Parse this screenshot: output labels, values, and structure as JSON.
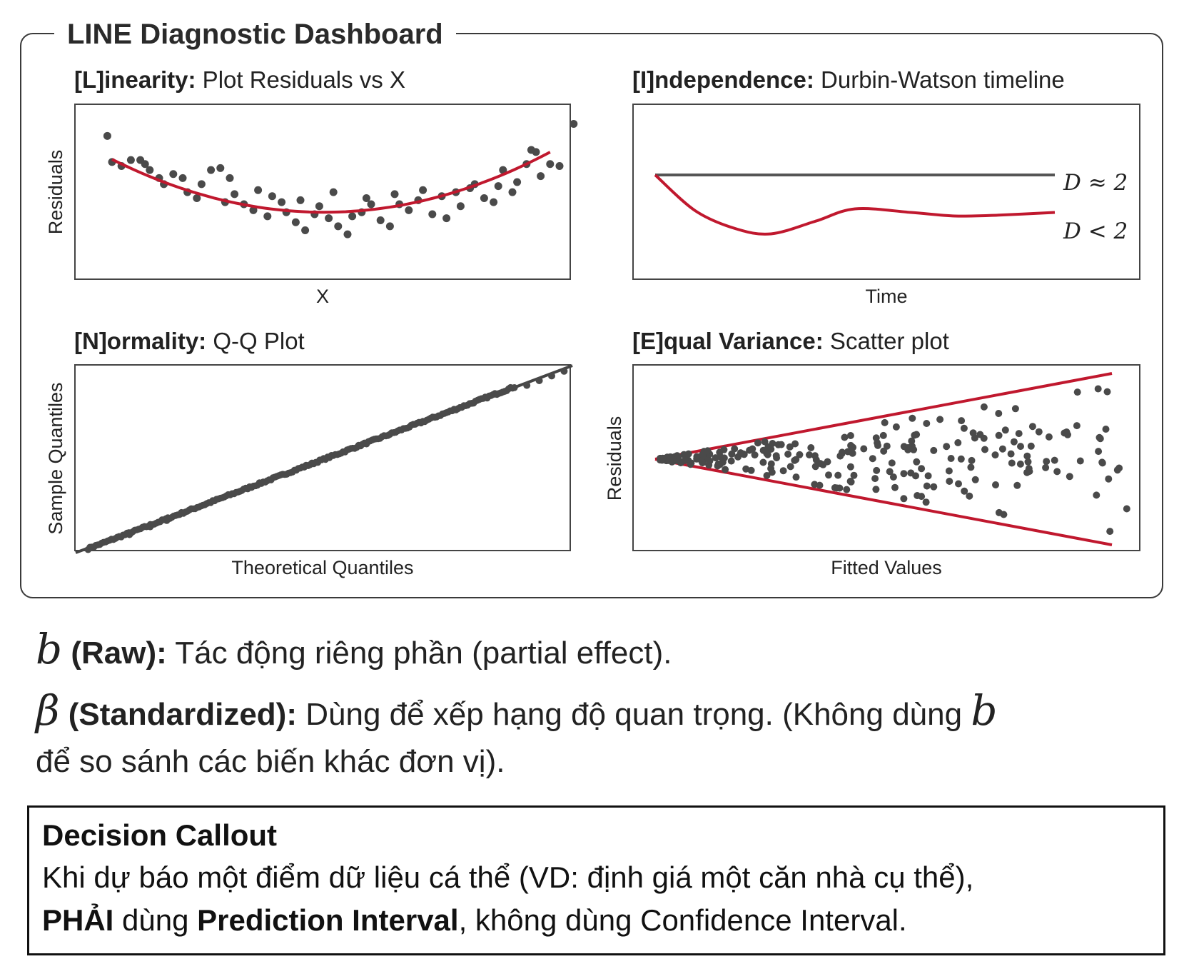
{
  "dashboard": {
    "title": "LINE Diagnostic Dashboard"
  },
  "colors": {
    "points": "#4a4a4a",
    "fit": "#c0182e",
    "line": "#444444"
  },
  "panels": {
    "linearity": {
      "title_bold": "[L]inearity:",
      "title_rest": " Plot Residuals vs X",
      "xlabel": "X",
      "ylabel": "Residuals"
    },
    "independence": {
      "title_bold": "[I]ndependence:",
      "title_rest": " Durbin-Watson timeline",
      "xlabel": "Time",
      "label_flat": "D ≈ 2",
      "label_curve": "D < 2"
    },
    "normality": {
      "title_bold": "[N]ormality:",
      "title_rest": " Q-Q Plot",
      "xlabel": "Theoretical Quantiles",
      "ylabel": "Sample Quantiles"
    },
    "equal_variance": {
      "title_bold": "[E]qual Variance:",
      "title_rest": " Scatter plot",
      "xlabel": "Fitted Values",
      "ylabel": "Residuals"
    }
  },
  "notes": {
    "raw_symbol": "b",
    "raw_bold": "(Raw):",
    "raw_text": " Tác động riêng phần (partial effect).",
    "std_symbol": "β",
    "std_bold": "(Standardized):",
    "std_text": " Dùng để xếp hạng độ quan trọng. (Không dùng ",
    "std_symbol2": "b",
    "std_text2": "để so sánh các biến khác đơn vị)."
  },
  "callout": {
    "title": "Decision Callout",
    "line1": "Khi dự báo một điểm dữ liệu cá thể (VD: định giá một căn nhà cụ thể),",
    "must": "PHẢI",
    "mid": " dùng ",
    "pi": "Prediction Interval",
    "end": ", không dùng Confidence Interval."
  },
  "chart_data": [
    {
      "type": "scatter",
      "title": "[L]inearity: Plot Residuals vs X",
      "xlabel": "X",
      "ylabel": "Residuals",
      "xlim": [
        0,
        10
      ],
      "ylim": [
        -3,
        4.5
      ],
      "grid": false,
      "points": [
        [
          0.4,
          3.6
        ],
        [
          0.5,
          2.3
        ],
        [
          0.7,
          2.1
        ],
        [
          0.9,
          2.4
        ],
        [
          1.1,
          2.4
        ],
        [
          1.2,
          2.2
        ],
        [
          1.3,
          1.9
        ],
        [
          1.5,
          1.5
        ],
        [
          1.6,
          1.2
        ],
        [
          1.8,
          1.7
        ],
        [
          2.0,
          1.5
        ],
        [
          2.1,
          0.8
        ],
        [
          2.3,
          0.5
        ],
        [
          2.4,
          1.2
        ],
        [
          2.6,
          1.9
        ],
        [
          2.8,
          2.0
        ],
        [
          2.9,
          0.3
        ],
        [
          3.0,
          1.5
        ],
        [
          3.1,
          0.7
        ],
        [
          3.3,
          0.2
        ],
        [
          3.5,
          -0.1
        ],
        [
          3.6,
          0.9
        ],
        [
          3.8,
          -0.4
        ],
        [
          3.9,
          0.6
        ],
        [
          4.1,
          0.3
        ],
        [
          4.2,
          -0.2
        ],
        [
          4.4,
          -0.7
        ],
        [
          4.5,
          0.4
        ],
        [
          4.6,
          -1.1
        ],
        [
          4.8,
          -0.3
        ],
        [
          4.9,
          0.1
        ],
        [
          5.1,
          -0.5
        ],
        [
          5.2,
          0.8
        ],
        [
          5.3,
          -0.9
        ],
        [
          5.5,
          -1.3
        ],
        [
          5.6,
          -0.4
        ],
        [
          5.8,
          -0.2
        ],
        [
          5.9,
          0.5
        ],
        [
          6.0,
          0.2
        ],
        [
          6.2,
          -0.6
        ],
        [
          6.4,
          -0.9
        ],
        [
          6.5,
          0.7
        ],
        [
          6.6,
          0.2
        ],
        [
          6.8,
          -0.1
        ],
        [
          7.0,
          0.4
        ],
        [
          7.1,
          0.9
        ],
        [
          7.3,
          -0.3
        ],
        [
          7.5,
          0.6
        ],
        [
          7.6,
          -0.5
        ],
        [
          7.8,
          0.8
        ],
        [
          7.9,
          0.1
        ],
        [
          8.1,
          1.0
        ],
        [
          8.2,
          1.2
        ],
        [
          8.4,
          0.5
        ],
        [
          8.6,
          0.3
        ],
        [
          8.7,
          1.1
        ],
        [
          8.8,
          1.9
        ],
        [
          9.0,
          0.8
        ],
        [
          9.1,
          1.3
        ],
        [
          9.3,
          2.2
        ],
        [
          9.4,
          2.9
        ],
        [
          9.5,
          2.8
        ],
        [
          9.6,
          1.6
        ],
        [
          9.8,
          2.2
        ],
        [
          10.0,
          2.1
        ],
        [
          10.3,
          4.2
        ]
      ],
      "fit": {
        "type": "quadratic",
        "vertex_x": 5.0,
        "vertex_y": -0.2,
        "a": 0.13,
        "x_range": [
          0.5,
          9.8
        ]
      }
    },
    {
      "type": "line",
      "title": "[I]ndependence: Durbin-Watson timeline",
      "xlabel": "Time",
      "ylabel": "",
      "xlim": [
        0,
        10
      ],
      "ylim": [
        -2.5,
        2.0
      ],
      "series": [
        {
          "name": "D ≈ 2",
          "x": [
            0,
            10
          ],
          "y": [
            1.0,
            1.0
          ]
        },
        {
          "name": "D < 2",
          "x": [
            0,
            1.0,
            2.0,
            2.9,
            4.0,
            5.0,
            6.4,
            7.5,
            8.6,
            10.0
          ],
          "y": [
            1.0,
            -1.0,
            -2.0,
            -2.3,
            -1.6,
            -0.9,
            -1.1,
            -1.3,
            -1.25,
            -1.1
          ]
        }
      ]
    },
    {
      "type": "scatter",
      "title": "[N]ormality: Q-Q Plot",
      "xlabel": "Theoretical Quantiles",
      "ylabel": "Sample Quantiles",
      "xlim": [
        -3,
        3
      ],
      "ylim": [
        -3,
        3
      ],
      "grid": false,
      "reference_line": {
        "slope": 1,
        "intercept": 0
      },
      "points_count": 220,
      "points_range": [
        -2.85,
        2.3
      ],
      "tail_points": [
        [
          -2.8,
          -2.8
        ],
        [
          -2.35,
          -2.4
        ],
        [
          -2.1,
          -2.15
        ],
        [
          -1.9,
          -1.95
        ],
        [
          2.45,
          2.35
        ],
        [
          2.6,
          2.5
        ],
        [
          2.75,
          2.65
        ],
        [
          2.9,
          2.8
        ]
      ]
    },
    {
      "type": "scatter",
      "title": "[E]qual Variance: Scatter plot",
      "xlabel": "Fitted Values",
      "ylabel": "Residuals",
      "xlim": [
        0,
        10
      ],
      "ylim": [
        -2.2,
        2.2
      ],
      "grid": false,
      "envelope": {
        "apex": [
          0.4,
          0
        ],
        "upper_end": [
          9.6,
          2.0
        ],
        "lower_end": [
          9.6,
          -2.0
        ]
      },
      "points_count": 260,
      "pattern": "funnel-heteroscedastic"
    }
  ]
}
